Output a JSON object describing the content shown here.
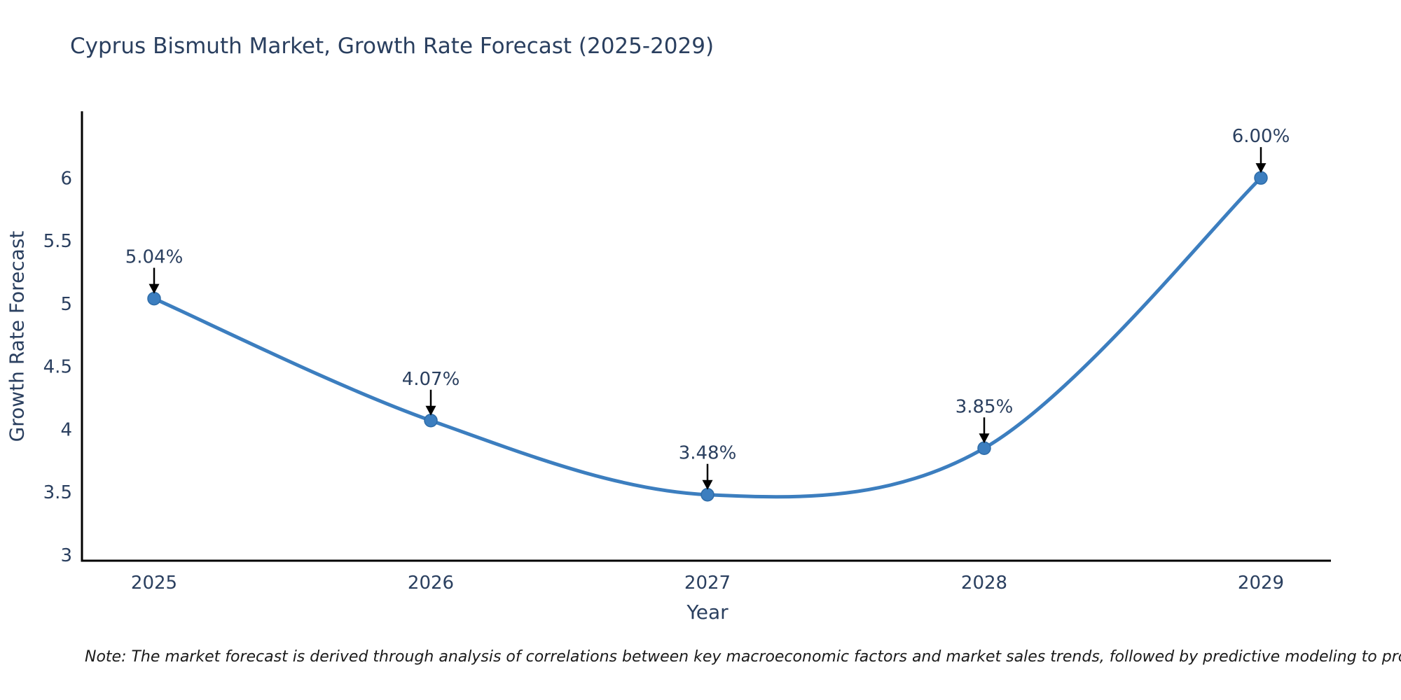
{
  "title": "Cyprus Bismuth Market, Growth Rate Forecast (2025-2029)",
  "note": "Note: The market forecast is derived through analysis of correlations between key macroeconomic factors and market sales trends, followed by predictive modeling to project future sales",
  "chart_data": {
    "type": "line",
    "title": "Cyprus Bismuth Market, Growth Rate Forecast (2025-2029)",
    "xlabel": "Year",
    "ylabel": "Growth Rate Forecast",
    "x": [
      "2025",
      "2026",
      "2027",
      "2028",
      "2029"
    ],
    "values": [
      5.04,
      4.07,
      3.48,
      3.85,
      6.0
    ],
    "point_labels": [
      "5.04%",
      "4.07%",
      "3.48%",
      "3.85%",
      "6.00%"
    ],
    "yticks": [
      3,
      3.5,
      4,
      4.5,
      5,
      5.5,
      6
    ],
    "ylim": [
      2.955,
      6.53
    ],
    "line_shape": "spline",
    "grid": false,
    "legend": "none",
    "colors": {
      "line": "#3c7ebf",
      "marker_fill": "#3c7ebf",
      "marker_stroke": "#2e6ca8",
      "spine": "#000000",
      "axis_text": "#2a3f5f",
      "annotation_text": "#2a3f5f",
      "annotation_arrow": "#000000"
    }
  }
}
